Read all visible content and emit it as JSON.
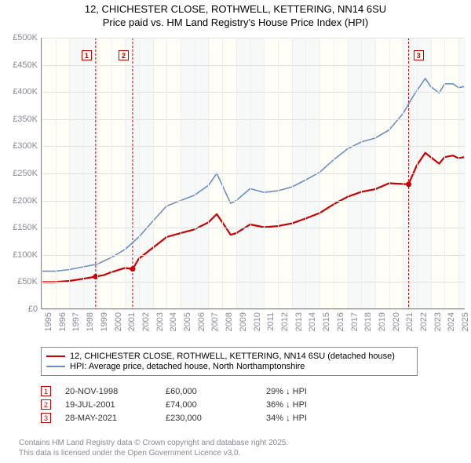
{
  "title_line1": "12, CHICHESTER CLOSE, ROTHWELL, KETTERING, NN14 6SU",
  "title_line2": "Price paid vs. HM Land Registry's House Price Index (HPI)",
  "chart": {
    "type": "line",
    "background_color": "#fffff8",
    "grid_color": "#e0e0e0",
    "axis_color": "#888888",
    "tick_color": "#888a99",
    "tick_fontsize": 11,
    "x_years": [
      1995,
      1996,
      1997,
      1998,
      1999,
      2000,
      2001,
      2002,
      2003,
      2004,
      2005,
      2006,
      2007,
      2008,
      2009,
      2010,
      2011,
      2012,
      2013,
      2014,
      2015,
      2016,
      2017,
      2018,
      2019,
      2020,
      2021,
      2022,
      2023,
      2024,
      2025
    ],
    "xlim": [
      1995,
      2025.5
    ],
    "y_ticks": [
      0,
      50000,
      100000,
      150000,
      200000,
      250000,
      300000,
      350000,
      400000,
      450000,
      500000
    ],
    "y_tick_labels": [
      "£0",
      "£50K",
      "£100K",
      "£150K",
      "£200K",
      "£250K",
      "£300K",
      "£350K",
      "£400K",
      "£450K",
      "£500K"
    ],
    "ylim": [
      0,
      500000
    ],
    "alt_band_color": "#dbe7f3",
    "alt_band_opacity": 0.7,
    "series": [
      {
        "id": "hpi",
        "label": "HPI: Average price, detached house, North Northamptonshire",
        "color": "#6a8fc7",
        "line_width": 1.6,
        "data": [
          [
            1995,
            70000
          ],
          [
            1996,
            70000
          ],
          [
            1997,
            73000
          ],
          [
            1998,
            78000
          ],
          [
            1999,
            83000
          ],
          [
            2000,
            95000
          ],
          [
            2001,
            110000
          ],
          [
            2002,
            133000
          ],
          [
            2003,
            162000
          ],
          [
            2004,
            190000
          ],
          [
            2005,
            200000
          ],
          [
            2006,
            210000
          ],
          [
            2007,
            228000
          ],
          [
            2007.6,
            250000
          ],
          [
            2008,
            228000
          ],
          [
            2008.6,
            195000
          ],
          [
            2009,
            200000
          ],
          [
            2010,
            222000
          ],
          [
            2011,
            215000
          ],
          [
            2012,
            218000
          ],
          [
            2013,
            225000
          ],
          [
            2014,
            238000
          ],
          [
            2015,
            252000
          ],
          [
            2016,
            275000
          ],
          [
            2017,
            295000
          ],
          [
            2018,
            308000
          ],
          [
            2019,
            315000
          ],
          [
            2020,
            330000
          ],
          [
            2021,
            360000
          ],
          [
            2021.8,
            395000
          ],
          [
            2022.6,
            425000
          ],
          [
            2023,
            410000
          ],
          [
            2023.6,
            398000
          ],
          [
            2024,
            415000
          ],
          [
            2024.6,
            415000
          ],
          [
            2025,
            408000
          ],
          [
            2025.4,
            410000
          ]
        ]
      },
      {
        "id": "price_paid",
        "label": "12, CHICHESTER CLOSE, ROTHWELL, KETTERING, NN14 6SU (detached house)",
        "color": "#cc0000",
        "line_width": 2.2,
        "data": [
          [
            1995,
            50000
          ],
          [
            1996,
            50000
          ],
          [
            1997,
            52000
          ],
          [
            1998,
            56000
          ],
          [
            1998.9,
            60000
          ],
          [
            1999.5,
            63000
          ],
          [
            2000,
            68000
          ],
          [
            2001,
            76000
          ],
          [
            2001.55,
            74000
          ],
          [
            2002,
            93000
          ],
          [
            2003,
            113000
          ],
          [
            2004,
            133000
          ],
          [
            2005,
            140000
          ],
          [
            2006,
            147000
          ],
          [
            2007,
            160000
          ],
          [
            2007.6,
            175000
          ],
          [
            2008,
            160000
          ],
          [
            2008.6,
            137000
          ],
          [
            2009,
            140000
          ],
          [
            2010,
            156000
          ],
          [
            2011,
            151000
          ],
          [
            2012,
            153000
          ],
          [
            2013,
            158000
          ],
          [
            2014,
            167000
          ],
          [
            2015,
            177000
          ],
          [
            2016,
            193000
          ],
          [
            2017,
            207000
          ],
          [
            2018,
            216000
          ],
          [
            2019,
            221000
          ],
          [
            2020,
            232000
          ],
          [
            2021.4,
            230000
          ],
          [
            2022,
            265000
          ],
          [
            2022.6,
            288000
          ],
          [
            2023,
            280000
          ],
          [
            2023.6,
            268000
          ],
          [
            2024,
            280000
          ],
          [
            2024.6,
            283000
          ],
          [
            2025,
            278000
          ],
          [
            2025.4,
            280000
          ]
        ],
        "sale_dots": [
          {
            "x": 1998.89,
            "y": 60000
          },
          {
            "x": 2001.55,
            "y": 74000
          },
          {
            "x": 2021.41,
            "y": 230000
          }
        ]
      }
    ],
    "event_markers": [
      {
        "num": "1",
        "x": 1998.89,
        "color": "#cc0000"
      },
      {
        "num": "2",
        "x": 2001.55,
        "color": "#cc0000"
      },
      {
        "num": "3",
        "x": 2021.41,
        "color": "#cc0000"
      }
    ]
  },
  "legend": {
    "border_color": "#888888",
    "items": [
      {
        "color": "#cc0000",
        "label": "12, CHICHESTER CLOSE, ROTHWELL, KETTERING, NN14 6SU (detached house)"
      },
      {
        "color": "#6a8fc7",
        "label": "HPI: Average price, detached house, North Northamptonshire"
      }
    ]
  },
  "sales": [
    {
      "num": "1",
      "date": "20-NOV-1998",
      "price": "£60,000",
      "delta": "29% ↓ HPI",
      "color": "#cc0000"
    },
    {
      "num": "2",
      "date": "19-JUL-2001",
      "price": "£74,000",
      "delta": "36% ↓ HPI",
      "color": "#cc0000"
    },
    {
      "num": "3",
      "date": "28-MAY-2021",
      "price": "£230,000",
      "delta": "34% ↓ HPI",
      "color": "#cc0000"
    }
  ],
  "footer_line1": "Contains HM Land Registry data © Crown copyright and database right 2025.",
  "footer_line2": "This data is licensed under the Open Government Licence v3.0."
}
